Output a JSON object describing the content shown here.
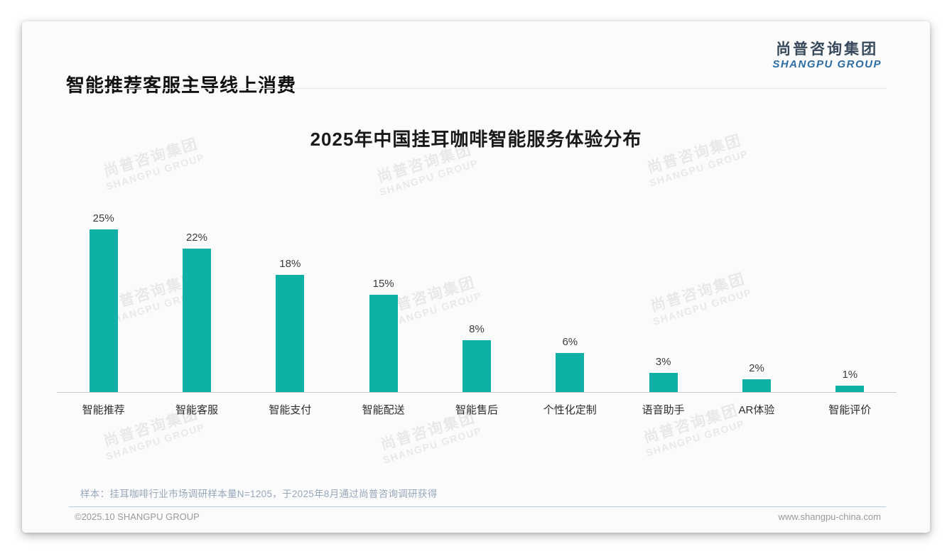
{
  "header": {
    "title": "智能推荐客服主导线上消费"
  },
  "logo": {
    "cn": "尚普咨询集团",
    "en": "SHANGPU GROUP",
    "cn_color": "#37495a",
    "en_color": "#2d6da3"
  },
  "watermark": {
    "cn": "尚普咨询集团",
    "en": "SHANGPU GROUP"
  },
  "chart_data": {
    "type": "bar",
    "title": "2025年中国挂耳咖啡智能服务体验分布",
    "categories": [
      "智能推荐",
      "智能客服",
      "智能支付",
      "智能配送",
      "智能售后",
      "个性化定制",
      "语音助手",
      "AR体验",
      "智能评价"
    ],
    "values": [
      25,
      22,
      18,
      15,
      8,
      6,
      3,
      2,
      1
    ],
    "unit": "%",
    "value_labels": [
      "25%",
      "22%",
      "18%",
      "15%",
      "8%",
      "6%",
      "3%",
      "2%",
      "1%"
    ],
    "bar_color": "#0fb0a6",
    "xlabel": "",
    "ylabel": "",
    "ylim": [
      0,
      28
    ],
    "grid": false,
    "legend": "none",
    "axis_line_color": "#cbcbcb"
  },
  "note": {
    "text": "样本：挂耳咖啡行业市场调研样本量N=1205，于2025年8月通过尚普咨询调研获得"
  },
  "footer": {
    "copyright": "©2025.10 SHANGPU GROUP",
    "website": "www.shangpu-china.com"
  }
}
